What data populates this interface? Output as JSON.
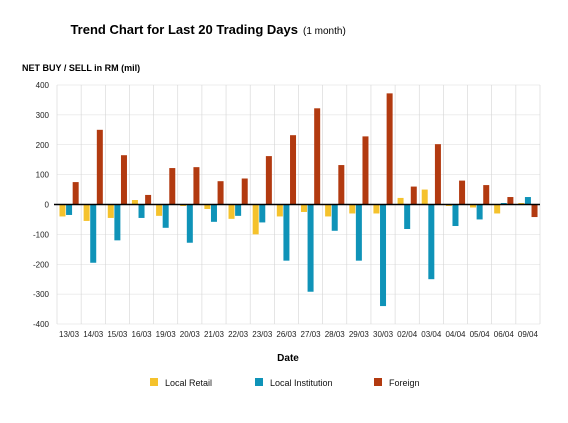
{
  "chart_data": {
    "type": "bar",
    "title": "Trend Chart for Last 20 Trading Days",
    "subtitle": "(1 month)",
    "xlabel": "Date",
    "ylabel": "NET BUY / SELL in RM (mil)",
    "ylim": [
      -400,
      400
    ],
    "yticks": [
      400,
      300,
      200,
      100,
      0,
      -100,
      -200,
      -300,
      -400
    ],
    "grid": true,
    "legend_position": "bottom",
    "categories": [
      "13/03",
      "14/03",
      "15/03",
      "16/03",
      "19/03",
      "20/03",
      "21/03",
      "22/03",
      "23/03",
      "26/03",
      "27/03",
      "28/03",
      "29/03",
      "30/03",
      "02/04",
      "03/04",
      "04/04",
      "05/04",
      "06/04",
      "09/04"
    ],
    "series": [
      {
        "name": "Local Retail",
        "color": "#f5c22c",
        "values": [
          -40,
          -55,
          -45,
          15,
          -38,
          -5,
          -15,
          -48,
          -100,
          -40,
          -25,
          -40,
          -30,
          -30,
          22,
          50,
          -5,
          -10,
          -30,
          5
        ]
      },
      {
        "name": "Local Institution",
        "color": "#0f93b8",
        "values": [
          -35,
          -195,
          -120,
          -45,
          -78,
          -128,
          -58,
          -38,
          -60,
          -188,
          -292,
          -88,
          -188,
          -340,
          -82,
          -250,
          -72,
          -50,
          5,
          25
        ]
      },
      {
        "name": "Foreign",
        "color": "#b23a10",
        "values": [
          75,
          250,
          165,
          32,
          122,
          125,
          78,
          87,
          162,
          232,
          322,
          132,
          228,
          372,
          60,
          202,
          80,
          65,
          25,
          -42
        ]
      }
    ]
  }
}
